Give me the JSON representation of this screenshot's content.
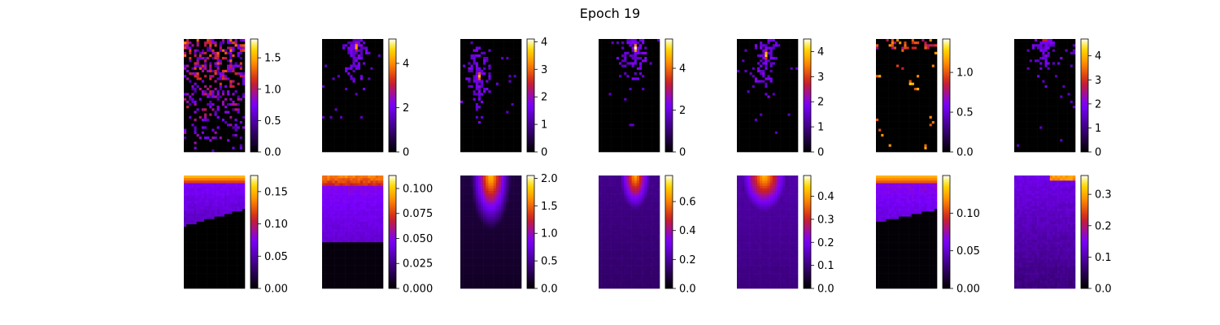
{
  "title": "Epoch 19",
  "colormap": {
    "name": "gnuplot",
    "stops": [
      "#000000",
      "#7a00ff",
      "#cc2020",
      "#ff8800",
      "#ffe000",
      "#ffffff"
    ]
  },
  "chart_data": [
    {
      "type": "heatmap",
      "row": 0,
      "col": 0,
      "vmin": 0,
      "vmax": 1.8,
      "ticks": [
        "0.0",
        "0.5",
        "1.0",
        "1.5"
      ],
      "tick_values": [
        0,
        0.5,
        1.0,
        1.5
      ],
      "pattern": "sparse-noise-top"
    },
    {
      "type": "heatmap",
      "row": 0,
      "col": 1,
      "vmin": 0,
      "vmax": 5.1,
      "ticks": [
        "0",
        "2",
        "4"
      ],
      "tick_values": [
        0,
        2,
        4
      ],
      "pattern": "blob",
      "blob": {
        "cx": 0.55,
        "cy": 0.07
      }
    },
    {
      "type": "heatmap",
      "row": 0,
      "col": 2,
      "vmin": 0,
      "vmax": 4.1,
      "ticks": [
        "0",
        "1",
        "2",
        "3",
        "4"
      ],
      "tick_values": [
        0,
        1,
        2,
        3,
        4
      ],
      "pattern": "blob",
      "blob": {
        "cx": 0.3,
        "cy": 0.33
      }
    },
    {
      "type": "heatmap",
      "row": 0,
      "col": 3,
      "vmin": 0,
      "vmax": 5.4,
      "ticks": [
        "0",
        "2",
        "4"
      ],
      "tick_values": [
        0,
        2,
        4
      ],
      "pattern": "blob",
      "blob": {
        "cx": 0.6,
        "cy": 0.08
      }
    },
    {
      "type": "heatmap",
      "row": 0,
      "col": 4,
      "vmin": 0,
      "vmax": 4.5,
      "ticks": [
        "0",
        "1",
        "2",
        "3",
        "4"
      ],
      "tick_values": [
        0,
        1,
        2,
        3,
        4
      ],
      "pattern": "blob",
      "blob": {
        "cx": 0.47,
        "cy": 0.14
      }
    },
    {
      "type": "heatmap",
      "row": 0,
      "col": 5,
      "vmin": 0,
      "vmax": 1.42,
      "ticks": [
        "0.0",
        "0.5",
        "1.0"
      ],
      "tick_values": [
        0,
        0.5,
        1.0
      ],
      "pattern": "very-sparse"
    },
    {
      "type": "heatmap",
      "row": 0,
      "col": 6,
      "vmin": 0,
      "vmax": 4.7,
      "ticks": [
        "0",
        "1",
        "2",
        "3",
        "4"
      ],
      "tick_values": [
        0,
        1,
        2,
        3,
        4
      ],
      "pattern": "blob",
      "blob": {
        "cx": 0.5,
        "cy": 0.0
      }
    },
    {
      "type": "heatmap",
      "row": 1,
      "col": 0,
      "vmin": 0,
      "vmax": 0.175,
      "ticks": [
        "0.00",
        "0.05",
        "0.10",
        "0.15"
      ],
      "tick_values": [
        0,
        0.05,
        0.1,
        0.15
      ],
      "pattern": "top-band-dark"
    },
    {
      "type": "heatmap",
      "row": 1,
      "col": 1,
      "vmin": 0,
      "vmax": 0.113,
      "ticks": [
        "0.000",
        "0.025",
        "0.050",
        "0.075",
        "0.100"
      ],
      "tick_values": [
        0,
        0.025,
        0.05,
        0.075,
        0.1
      ],
      "pattern": "top-band-mid"
    },
    {
      "type": "heatmap",
      "row": 1,
      "col": 2,
      "vmin": 0,
      "vmax": 2.05,
      "ticks": [
        "0.0",
        "0.5",
        "1.0",
        "1.5",
        "2.0"
      ],
      "tick_values": [
        0,
        0.5,
        1.0,
        1.5,
        2.0
      ],
      "pattern": "top-point"
    },
    {
      "type": "heatmap",
      "row": 1,
      "col": 3,
      "vmin": 0,
      "vmax": 0.78,
      "ticks": [
        "0.0",
        "0.2",
        "0.4",
        "0.6"
      ],
      "tick_values": [
        0,
        0.2,
        0.4,
        0.6
      ],
      "pattern": "top-point-wide"
    },
    {
      "type": "heatmap",
      "row": 1,
      "col": 4,
      "vmin": 0,
      "vmax": 0.49,
      "ticks": [
        "0.0",
        "0.1",
        "0.2",
        "0.3",
        "0.4"
      ],
      "tick_values": [
        0,
        0.1,
        0.2,
        0.3,
        0.4
      ],
      "pattern": "top-cone"
    },
    {
      "type": "heatmap",
      "row": 1,
      "col": 5,
      "vmin": 0,
      "vmax": 0.15,
      "ticks": [
        "0.00",
        "0.05",
        "0.10"
      ],
      "tick_values": [
        0,
        0.05,
        0.1
      ],
      "pattern": "top-band-dark-right"
    },
    {
      "type": "heatmap",
      "row": 1,
      "col": 6,
      "vmin": 0,
      "vmax": 0.36,
      "ticks": [
        "0.0",
        "0.1",
        "0.2",
        "0.3"
      ],
      "tick_values": [
        0,
        0.1,
        0.2,
        0.3
      ],
      "pattern": "purple-field"
    }
  ]
}
